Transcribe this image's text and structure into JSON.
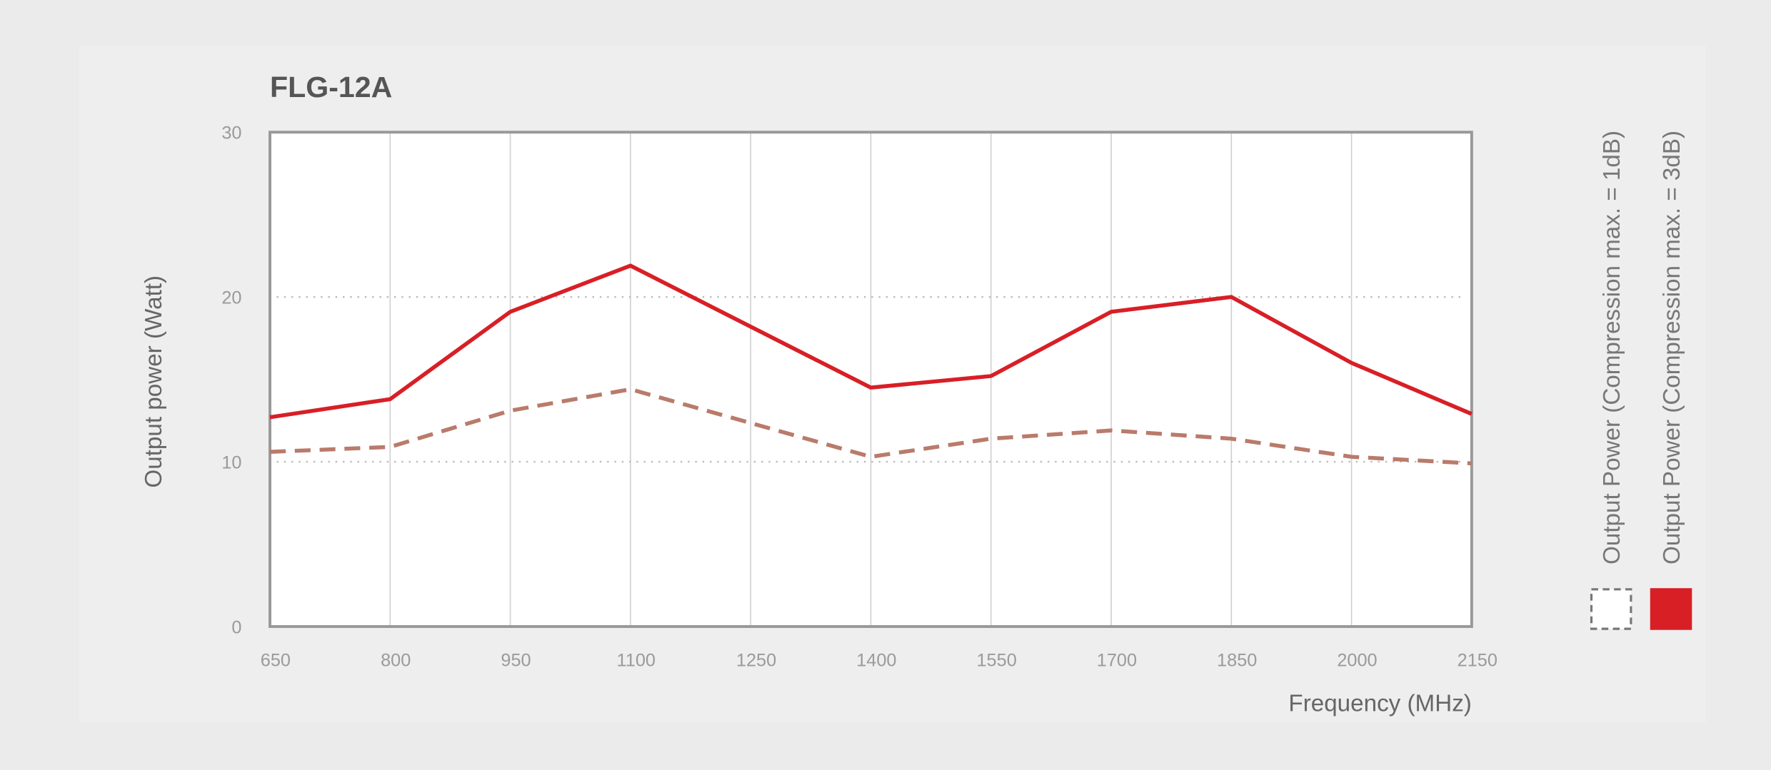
{
  "chart_data": {
    "type": "line",
    "title": "FLG-12A",
    "x_label": "Frequency (MHz)",
    "y_label": "Output power (Watt)",
    "x": [
      650,
      800,
      950,
      1100,
      1400,
      1550,
      1700,
      1850,
      2000,
      2150
    ],
    "series": [
      {
        "name": "Output Power (Compression max. = 1dB)",
        "color": "#b97b6b",
        "line_style": "dashed",
        "values": [
          10.6,
          10.9,
          13.1,
          14.4,
          10.3,
          11.4,
          11.9,
          11.4,
          10.3,
          9.9
        ]
      },
      {
        "name": "Output Power (Compression max. = 3dB)",
        "color": "#d81f26",
        "line_style": "solid",
        "values": [
          12.7,
          13.8,
          19.1,
          21.9,
          14.5,
          15.2,
          19.1,
          20.0,
          16.0,
          12.9
        ]
      }
    ],
    "xlim": [
      650,
      2150
    ],
    "xticks": [
      650,
      800,
      950,
      1100,
      1250,
      1400,
      1550,
      1700,
      1850,
      2000,
      2150
    ],
    "ylim": [
      0,
      30
    ],
    "yticks": [
      0,
      10,
      20,
      30
    ],
    "grid": true,
    "legend": "right"
  }
}
